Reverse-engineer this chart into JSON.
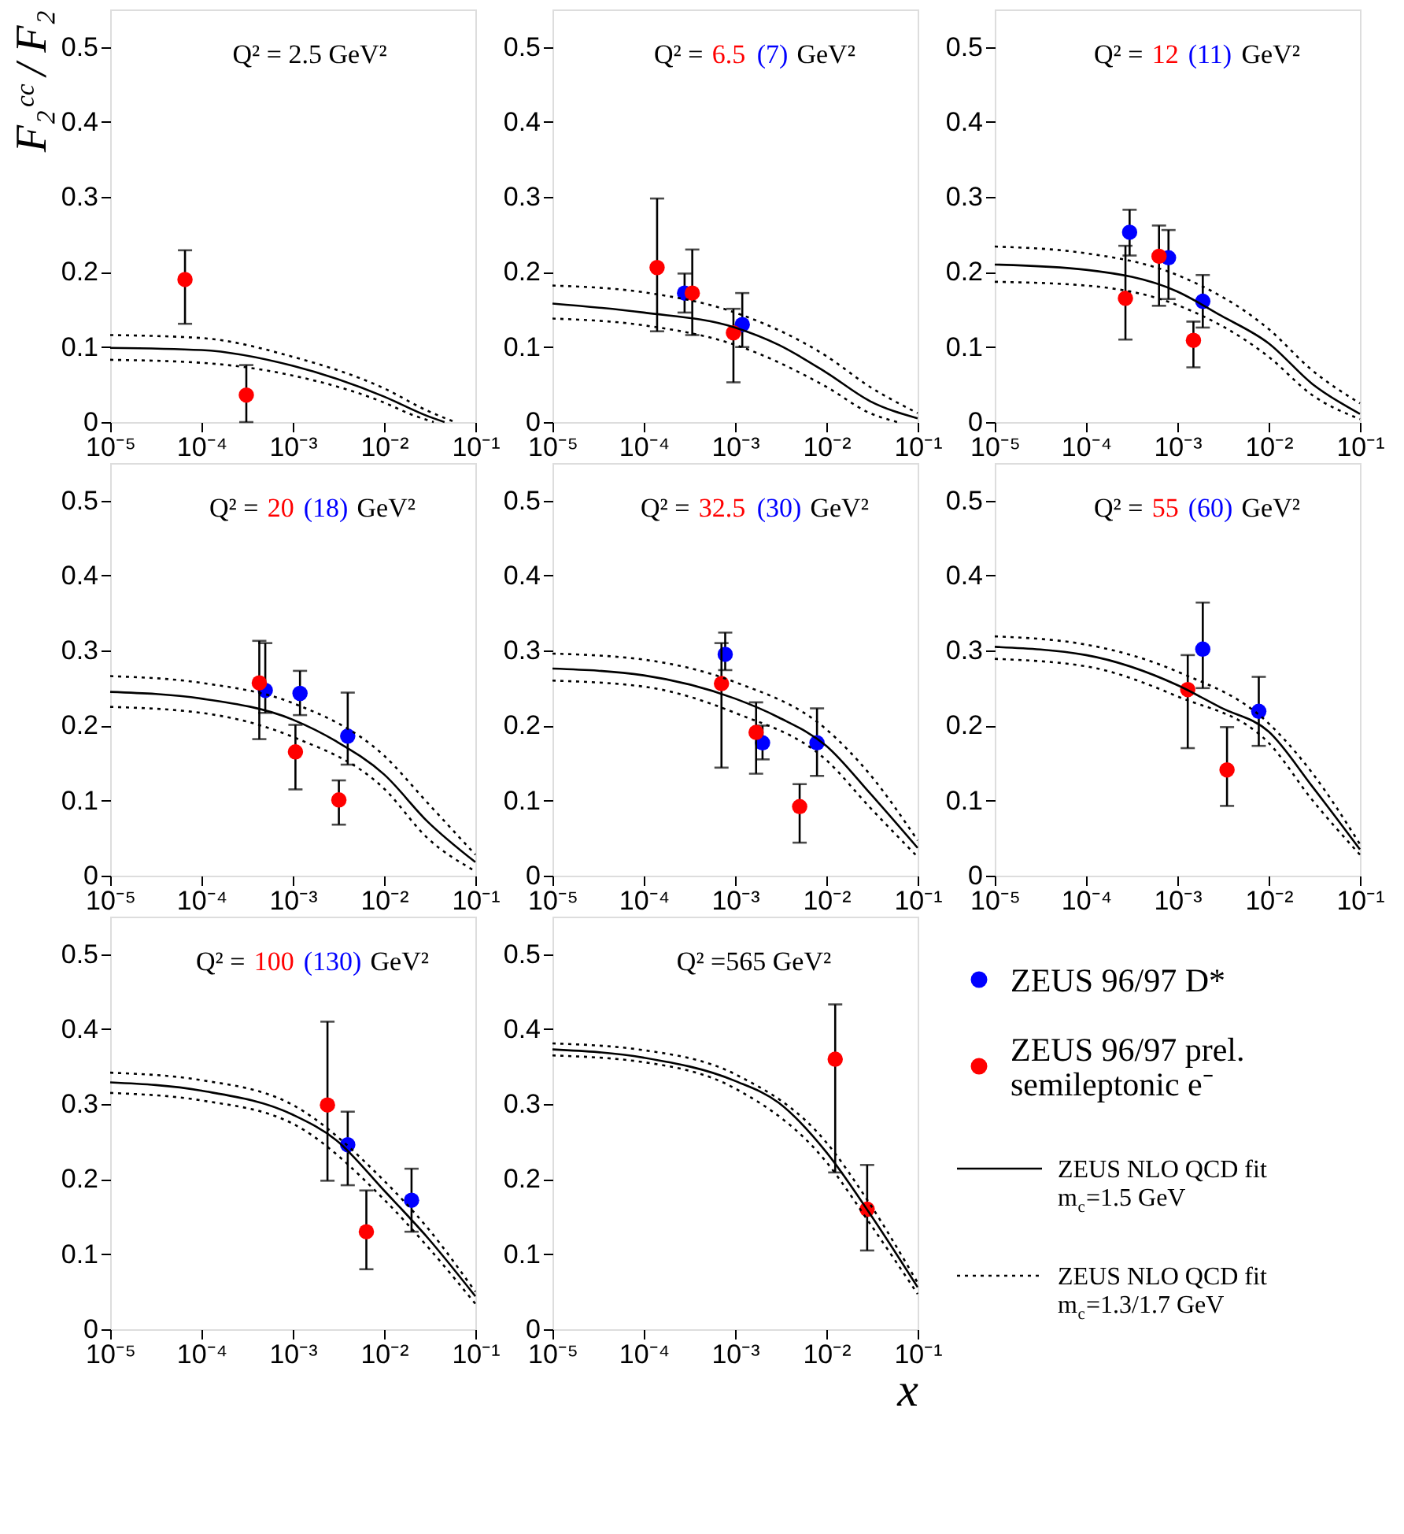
{
  "chart_data": [
    {
      "type": "scatter",
      "ylabel": "F₂ᶜᶜ / F₂",
      "annotations": [
        "Q² = 2.5 GeV²"
      ],
      "log": "x",
      "xlim": [
        1e-05,
        0.1
      ],
      "ylim": [
        0,
        0.55
      ],
      "xticks": [
        {
          "value": 1e-05,
          "label": "10⁻⁵"
        },
        {
          "value": 0.0001,
          "label": "10⁻⁴"
        },
        {
          "value": 0.001,
          "label": "10⁻³"
        },
        {
          "value": 0.01,
          "label": "10⁻²"
        },
        {
          "value": 0.1,
          "label": "10⁻¹"
        }
      ],
      "yticks": [
        0,
        0.1,
        0.2,
        0.3,
        0.4,
        0.5
      ],
      "series": [
        {
          "type": "scatter",
          "marker": "circle",
          "color": "#ff0000",
          "x": [
            6.6e-05,
            0.00031
          ],
          "values": [
            0.19,
            0.036
          ],
          "errors": [
            [
              0.131,
              0.229
            ],
            [
              0.0,
              0.076
            ]
          ]
        },
        {
          "type": "line",
          "marker": "none",
          "color": "#000000",
          "line_style": "solid",
          "x": [
            1e-05,
            0.0001,
            0.001,
            0.01,
            0.03,
            0.046
          ],
          "values": [
            0.099,
            0.096,
            0.075,
            0.034,
            0.008,
            0
          ]
        },
        {
          "type": "line",
          "marker": "none",
          "color": "#000000",
          "line_style": "dotted",
          "x": [
            1e-05,
            0.0001,
            0.001,
            0.01,
            0.03,
            0.06
          ],
          "values": [
            0.116,
            0.112,
            0.087,
            0.045,
            0.015,
            0
          ]
        },
        {
          "type": "line",
          "marker": "none",
          "color": "#000000",
          "line_style": "dotted",
          "x": [
            1e-05,
            0.0001,
            0.001,
            0.01,
            0.02,
            0.035
          ],
          "values": [
            0.083,
            0.079,
            0.062,
            0.026,
            0.01,
            0
          ]
        }
      ]
    },
    {
      "type": "scatter",
      "annotations": [
        "Q² =",
        "6.5",
        "(7)",
        "GeV²"
      ],
      "log": "x",
      "xlim": [
        1e-05,
        0.1
      ],
      "ylim": [
        0,
        0.55
      ],
      "xticks": [
        {
          "value": 1e-05,
          "label": "10⁻⁵"
        },
        {
          "value": 0.0001,
          "label": "10⁻⁴"
        },
        {
          "value": 0.001,
          "label": "10⁻³"
        },
        {
          "value": 0.01,
          "label": "10⁻²"
        },
        {
          "value": 0.1,
          "label": "10⁻¹"
        }
      ],
      "yticks": [
        0,
        0.1,
        0.2,
        0.3,
        0.4,
        0.5
      ],
      "series": [
        {
          "type": "scatter",
          "marker": "circle",
          "color": "#0000ff",
          "x": [
            0.00028,
            0.0012
          ],
          "values": [
            0.172,
            0.13
          ],
          "errors": [
            [
              0.146,
              0.198
            ],
            [
              0.1,
              0.172
            ]
          ]
        },
        {
          "type": "scatter",
          "marker": "circle",
          "color": "#ff0000",
          "x": [
            0.00014,
            0.00034,
            0.00096
          ],
          "values": [
            0.206,
            0.172,
            0.119
          ],
          "errors": [
            [
              0.121,
              0.298
            ],
            [
              0.116,
              0.23
            ],
            [
              0.053,
              0.151
            ]
          ]
        },
        {
          "type": "line",
          "marker": "none",
          "color": "#000000",
          "line_style": "solid",
          "x": [
            1e-05,
            0.0001,
            0.001,
            0.003,
            0.01,
            0.03,
            0.1
          ],
          "values": [
            0.158,
            0.146,
            0.126,
            0.103,
            0.066,
            0.028,
            0.005
          ]
        },
        {
          "type": "line",
          "marker": "none",
          "color": "#000000",
          "line_style": "dotted",
          "x": [
            1e-05,
            0.0001,
            0.001,
            0.01,
            0.03,
            0.1
          ],
          "values": [
            0.182,
            0.173,
            0.146,
            0.088,
            0.047,
            0.012
          ]
        },
        {
          "type": "line",
          "marker": "none",
          "color": "#000000",
          "line_style": "dotted",
          "x": [
            1e-05,
            0.0001,
            0.001,
            0.01,
            0.03,
            0.06
          ],
          "values": [
            0.138,
            0.129,
            0.103,
            0.047,
            0.012,
            0
          ]
        }
      ]
    },
    {
      "type": "scatter",
      "annotations": [
        "Q² =",
        "12",
        "(11)",
        "GeV²"
      ],
      "log": "x",
      "xlim": [
        1e-05,
        0.1
      ],
      "ylim": [
        0,
        0.55
      ],
      "xticks": [
        {
          "value": 1e-05,
          "label": "10⁻⁵"
        },
        {
          "value": 0.0001,
          "label": "10⁻⁴"
        },
        {
          "value": 0.001,
          "label": "10⁻³"
        },
        {
          "value": 0.01,
          "label": "10⁻²"
        },
        {
          "value": 0.1,
          "label": "10⁻¹"
        }
      ],
      "yticks": [
        0,
        0.1,
        0.2,
        0.3,
        0.4,
        0.5
      ],
      "series": [
        {
          "type": "scatter",
          "marker": "circle",
          "color": "#0000ff",
          "x": [
            0.0003,
            0.0008,
            0.0019
          ],
          "values": [
            0.253,
            0.219,
            0.161
          ],
          "errors": [
            [
              0.222,
              0.283
            ],
            [
              0.164,
              0.256
            ],
            [
              0.126,
              0.196
            ]
          ]
        },
        {
          "type": "scatter",
          "marker": "circle",
          "color": "#ff0000",
          "x": [
            0.00027,
            0.00063,
            0.0015
          ],
          "values": [
            0.165,
            0.221,
            0.109
          ],
          "errors": [
            [
              0.11,
              0.235
            ],
            [
              0.155,
              0.262
            ],
            [
              0.073,
              0.134
            ]
          ]
        },
        {
          "type": "line",
          "marker": "none",
          "color": "#000000",
          "line_style": "solid",
          "x": [
            1e-05,
            0.0001,
            0.001,
            0.003,
            0.01,
            0.03,
            0.1
          ],
          "values": [
            0.21,
            0.203,
            0.174,
            0.142,
            0.105,
            0.051,
            0.011
          ]
        },
        {
          "type": "line",
          "marker": "none",
          "color": "#000000",
          "line_style": "dotted",
          "x": [
            1e-05,
            0.0001,
            0.001,
            0.01,
            0.03,
            0.1
          ],
          "values": [
            0.234,
            0.225,
            0.196,
            0.124,
            0.069,
            0.025
          ]
        },
        {
          "type": "line",
          "marker": "none",
          "color": "#000000",
          "line_style": "dotted",
          "x": [
            1e-05,
            0.0001,
            0.001,
            0.01,
            0.03,
            0.1
          ],
          "values": [
            0.187,
            0.182,
            0.156,
            0.087,
            0.036,
            0.004
          ]
        }
      ]
    },
    {
      "type": "scatter",
      "annotations": [
        "Q² =",
        "20",
        "(18)",
        "GeV²"
      ],
      "log": "x",
      "xlim": [
        1e-05,
        0.1
      ],
      "ylim": [
        0,
        0.55
      ],
      "xticks": [
        {
          "value": 1e-05,
          "label": "10⁻⁵"
        },
        {
          "value": 0.0001,
          "label": "10⁻⁴"
        },
        {
          "value": 0.001,
          "label": "10⁻³"
        },
        {
          "value": 0.01,
          "label": "10⁻²"
        },
        {
          "value": 0.1,
          "label": "10⁻¹"
        }
      ],
      "yticks": [
        0,
        0.1,
        0.2,
        0.3,
        0.4,
        0.5
      ],
      "series": [
        {
          "type": "scatter",
          "marker": "circle",
          "color": "#0000ff",
          "x": [
            0.0005,
            0.0012,
            0.004
          ],
          "values": [
            0.247,
            0.243,
            0.186
          ],
          "errors": [
            [
              0.217,
              0.31
            ],
            [
              0.214,
              0.273
            ],
            [
              0.148,
              0.244
            ]
          ]
        },
        {
          "type": "scatter",
          "marker": "circle",
          "color": "#ff0000",
          "x": [
            0.00043,
            0.00107,
            0.0032
          ],
          "values": [
            0.257,
            0.165,
            0.101
          ],
          "errors": [
            [
              0.182,
              0.313
            ],
            [
              0.115,
              0.201
            ],
            [
              0.068,
              0.127
            ]
          ]
        },
        {
          "type": "line",
          "marker": "none",
          "color": "#000000",
          "line_style": "solid",
          "x": [
            1e-05,
            0.0001,
            0.001,
            0.003,
            0.01,
            0.03,
            0.1
          ],
          "values": [
            0.245,
            0.236,
            0.208,
            0.179,
            0.135,
            0.072,
            0.018
          ]
        },
        {
          "type": "line",
          "marker": "none",
          "color": "#000000",
          "line_style": "dotted",
          "x": [
            1e-05,
            0.0001,
            0.001,
            0.01,
            0.03,
            0.1
          ],
          "values": [
            0.266,
            0.257,
            0.23,
            0.16,
            0.097,
            0.028
          ]
        },
        {
          "type": "line",
          "marker": "none",
          "color": "#000000",
          "line_style": "dotted",
          "x": [
            1e-05,
            0.0001,
            0.001,
            0.01,
            0.03,
            0.1
          ],
          "values": [
            0.225,
            0.217,
            0.185,
            0.116,
            0.05,
            0.006
          ]
        }
      ]
    },
    {
      "type": "scatter",
      "annotations": [
        "Q² =",
        "32.5",
        "(30)",
        "GeV²"
      ],
      "log": "x",
      "xlim": [
        1e-05,
        0.1
      ],
      "ylim": [
        0,
        0.55
      ],
      "xticks": [
        {
          "value": 1e-05,
          "label": "10⁻⁵"
        },
        {
          "value": 0.0001,
          "label": "10⁻⁴"
        },
        {
          "value": 0.001,
          "label": "10⁻³"
        },
        {
          "value": 0.01,
          "label": "10⁻²"
        },
        {
          "value": 0.1,
          "label": "10⁻¹"
        }
      ],
      "yticks": [
        0,
        0.1,
        0.2,
        0.3,
        0.4,
        0.5
      ],
      "series": [
        {
          "type": "scatter",
          "marker": "circle",
          "color": "#0000ff",
          "x": [
            0.00078,
            0.002,
            0.0079
          ],
          "values": [
            0.295,
            0.177,
            0.177
          ],
          "errors": [
            [
              0.274,
              0.324
            ],
            [
              0.155,
              0.2
            ],
            [
              0.133,
              0.223
            ]
          ]
        },
        {
          "type": "scatter",
          "marker": "circle",
          "color": "#ff0000",
          "x": [
            0.00071,
            0.0017,
            0.0051
          ],
          "values": [
            0.256,
            0.191,
            0.092
          ],
          "errors": [
            [
              0.144,
              0.31
            ],
            [
              0.136,
              0.231
            ],
            [
              0.044,
              0.122
            ]
          ]
        },
        {
          "type": "line",
          "marker": "none",
          "color": "#000000",
          "line_style": "solid",
          "x": [
            1e-05,
            0.0001,
            0.001,
            0.003,
            0.01,
            0.03,
            0.1
          ],
          "values": [
            0.276,
            0.267,
            0.236,
            0.211,
            0.173,
            0.11,
            0.037
          ]
        },
        {
          "type": "line",
          "marker": "none",
          "color": "#000000",
          "line_style": "dotted",
          "x": [
            1e-05,
            0.0001,
            0.001,
            0.01,
            0.03,
            0.1
          ],
          "values": [
            0.296,
            0.288,
            0.258,
            0.195,
            0.135,
            0.047
          ]
        },
        {
          "type": "line",
          "marker": "none",
          "color": "#000000",
          "line_style": "dotted",
          "x": [
            1e-05,
            0.0001,
            0.001,
            0.01,
            0.03,
            0.1
          ],
          "values": [
            0.26,
            0.252,
            0.217,
            0.154,
            0.091,
            0.025
          ]
        }
      ]
    },
    {
      "type": "scatter",
      "annotations": [
        "Q² =",
        "55",
        "(60)",
        "GeV²"
      ],
      "log": "x",
      "legend": "bottom",
      "xlim": [
        1e-05,
        0.1
      ],
      "ylim": [
        0,
        0.55
      ],
      "xticks": [
        {
          "value": 1e-05,
          "label": "10⁻⁵"
        },
        {
          "value": 0.0001,
          "label": "10⁻⁴"
        },
        {
          "value": 0.001,
          "label": "10⁻³"
        },
        {
          "value": 0.01,
          "label": "10⁻²"
        },
        {
          "value": 0.1,
          "label": "10⁻¹"
        }
      ],
      "yticks": [
        0,
        0.1,
        0.2,
        0.3,
        0.4,
        0.5
      ],
      "series": [
        {
          "type": "scatter",
          "marker": "circle",
          "name": "ZEUS 96/97 D*",
          "color": "#0000ff",
          "x": [
            0.0019,
            0.0078
          ],
          "values": [
            0.302,
            0.219
          ],
          "errors": [
            [
              0.25,
              0.364
            ],
            [
              0.173,
              0.265
            ]
          ]
        },
        {
          "type": "scatter",
          "marker": "circle",
          "name": "ZEUS 96/97 prel. semileptonic e⁻",
          "color": "#ff0000",
          "x": [
            0.0013,
            0.0035
          ],
          "values": [
            0.248,
            0.141
          ],
          "errors": [
            [
              0.17,
              0.294
            ],
            [
              0.093,
              0.198
            ]
          ]
        },
        {
          "type": "line",
          "marker": "none",
          "name": "ZEUS NLO QCD fit m$_{c}$=1.5 GeV",
          "color": "#000000",
          "line_style": "solid",
          "x": [
            1e-05,
            0.0001,
            0.001,
            0.003,
            0.01,
            0.03,
            0.1
          ],
          "values": [
            0.305,
            0.294,
            0.254,
            0.224,
            0.192,
            0.119,
            0.035
          ]
        },
        {
          "type": "line",
          "marker": "none",
          "name": "ZEUS NLO QCD fit m$_{c}$=1.3/1.7 GeV",
          "color": "#000000",
          "line_style": "dotted",
          "x": [
            1e-05,
            0.0001,
            0.001,
            0.01,
            0.03,
            0.1
          ],
          "values": [
            0.319,
            0.308,
            0.272,
            0.203,
            0.137,
            0.042
          ]
        },
        {
          "type": "line",
          "marker": "none",
          "color": "#000000",
          "line_style": "dotted",
          "x": [
            1e-05,
            0.0001,
            0.001,
            0.01,
            0.03,
            0.1
          ],
          "values": [
            0.289,
            0.279,
            0.239,
            0.177,
            0.101,
            0.028
          ]
        }
      ]
    },
    {
      "type": "scatter",
      "annotations": [
        "Q² =",
        "100",
        "(130)",
        "GeV²"
      ],
      "log": "x",
      "xlim": [
        1e-05,
        0.1
      ],
      "ylim": [
        0,
        0.55
      ],
      "xticks": [
        {
          "value": 1e-05,
          "label": "10⁻⁵"
        },
        {
          "value": 0.0001,
          "label": "10⁻⁴"
        },
        {
          "value": 0.001,
          "label": "10⁻³"
        },
        {
          "value": 0.01,
          "label": "10⁻²"
        },
        {
          "value": 0.1,
          "label": "10⁻¹"
        }
      ],
      "yticks": [
        0,
        0.1,
        0.2,
        0.3,
        0.4,
        0.5
      ],
      "series": [
        {
          "type": "scatter",
          "marker": "circle",
          "color": "#0000ff",
          "x": [
            0.004,
            0.02
          ],
          "values": [
            0.246,
            0.172
          ],
          "errors": [
            [
              0.192,
              0.29
            ],
            [
              0.13,
              0.214
            ]
          ]
        },
        {
          "type": "scatter",
          "marker": "circle",
          "color": "#ff0000",
          "x": [
            0.0024,
            0.0064
          ],
          "values": [
            0.299,
            0.13
          ],
          "errors": [
            [
              0.198,
              0.41
            ],
            [
              0.08,
              0.185
            ]
          ]
        },
        {
          "type": "line",
          "marker": "none",
          "color": "#000000",
          "line_style": "solid",
          "x": [
            1e-05,
            0.0001,
            0.001,
            0.003,
            0.01,
            0.03,
            0.1
          ],
          "values": [
            0.329,
            0.318,
            0.286,
            0.252,
            0.185,
            0.122,
            0.044
          ]
        },
        {
          "type": "line",
          "marker": "none",
          "color": "#000000",
          "line_style": "dotted",
          "x": [
            1e-05,
            0.0001,
            0.001,
            0.01,
            0.03,
            0.1
          ],
          "values": [
            0.342,
            0.332,
            0.299,
            0.198,
            0.135,
            0.05
          ]
        },
        {
          "type": "line",
          "marker": "none",
          "color": "#000000",
          "line_style": "dotted",
          "x": [
            1e-05,
            0.0001,
            0.001,
            0.01,
            0.03,
            0.1
          ],
          "values": [
            0.315,
            0.305,
            0.274,
            0.173,
            0.11,
            0.034
          ]
        }
      ]
    },
    {
      "type": "scatter",
      "xlabel": "x",
      "annotations": [
        "Q² =565 GeV²"
      ],
      "log": "x",
      "xlim": [
        1e-05,
        0.1
      ],
      "ylim": [
        0,
        0.55
      ],
      "xticks": [
        {
          "value": 1e-05,
          "label": "10⁻⁵"
        },
        {
          "value": 0.0001,
          "label": "10⁻⁴"
        },
        {
          "value": 0.001,
          "label": "10⁻³"
        },
        {
          "value": 0.01,
          "label": "10⁻²"
        },
        {
          "value": 0.1,
          "label": "10⁻¹"
        }
      ],
      "yticks": [
        0,
        0.1,
        0.2,
        0.3,
        0.4,
        0.5
      ],
      "series": [
        {
          "type": "scatter",
          "marker": "circle",
          "color": "#ff0000",
          "x": [
            0.0125,
            0.028
          ],
          "values": [
            0.36,
            0.16
          ],
          "errors": [
            [
              0.209,
              0.433
            ],
            [
              0.105,
              0.219
            ]
          ]
        },
        {
          "type": "line",
          "marker": "none",
          "color": "#000000",
          "line_style": "solid",
          "x": [
            1e-05,
            0.0001,
            0.001,
            0.003,
            0.01,
            0.03,
            0.1
          ],
          "values": [
            0.373,
            0.362,
            0.331,
            0.302,
            0.236,
            0.154,
            0.056
          ]
        },
        {
          "type": "line",
          "marker": "none",
          "color": "#000000",
          "line_style": "dotted",
          "x": [
            1e-05,
            0.0001,
            0.001,
            0.01,
            0.03,
            0.1
          ],
          "values": [
            0.381,
            0.372,
            0.34,
            0.249,
            0.167,
            0.062
          ]
        },
        {
          "type": "line",
          "marker": "none",
          "color": "#000000",
          "line_style": "dotted",
          "x": [
            1e-05,
            0.0001,
            0.001,
            0.01,
            0.03,
            0.1
          ],
          "values": [
            0.365,
            0.356,
            0.321,
            0.223,
            0.141,
            0.047
          ]
        }
      ]
    }
  ]
}
